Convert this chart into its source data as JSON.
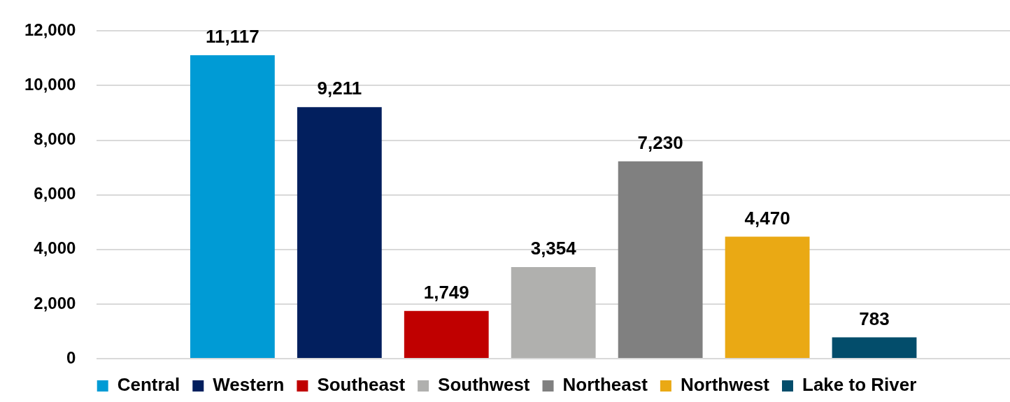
{
  "chart_data": {
    "type": "bar",
    "categories": [
      null
    ],
    "series": [
      {
        "name": "Central",
        "color": "#009bd5",
        "values": [
          11117
        ],
        "value_labels": [
          "11,117"
        ]
      },
      {
        "name": "Western",
        "color": "#021f5e",
        "values": [
          9211
        ],
        "value_labels": [
          "9,211"
        ]
      },
      {
        "name": "Southeast",
        "color": "#c00000",
        "values": [
          1749
        ],
        "value_labels": [
          "1,749"
        ]
      },
      {
        "name": "Southwest",
        "color": "#b0b0ae",
        "values": [
          3354
        ],
        "value_labels": [
          "3,354"
        ]
      },
      {
        "name": "Northeast",
        "color": "#808080",
        "values": [
          7230
        ],
        "value_labels": [
          "7,230"
        ]
      },
      {
        "name": "Northwest",
        "color": "#eaa914",
        "values": [
          4470
        ],
        "value_labels": [
          "4,470"
        ]
      },
      {
        "name": "Lake to River",
        "color": "#034d6b",
        "values": [
          783
        ],
        "value_labels": [
          "783"
        ]
      }
    ],
    "ylim": [
      0,
      12000
    ],
    "yticks": [
      {
        "value": 0,
        "label": "0"
      },
      {
        "value": 2000,
        "label": "2,000"
      },
      {
        "value": 4000,
        "label": "4,000"
      },
      {
        "value": 6000,
        "label": "6,000"
      },
      {
        "value": 8000,
        "label": "8,000"
      },
      {
        "value": 10000,
        "label": "10,000"
      },
      {
        "value": 12000,
        "label": "12,000"
      }
    ],
    "grid": "y",
    "legend": "bottom"
  }
}
